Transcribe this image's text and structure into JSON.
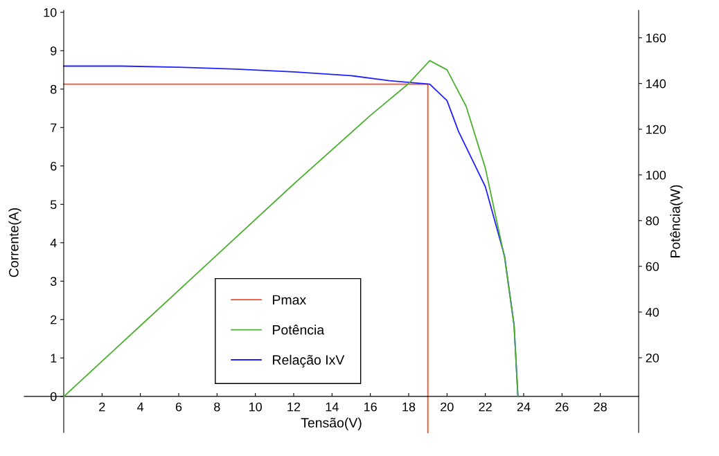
{
  "chart_data": {
    "type": "line",
    "xlabel": "Tensão(V)",
    "ylabel": "Corrente(A)",
    "y2label": "Potência(W)",
    "xlim": [
      -2.06,
      30
    ],
    "xticks": [
      2,
      4,
      6,
      8,
      10,
      12,
      14,
      16,
      18,
      20,
      22,
      24,
      26,
      28
    ],
    "ylim": [
      -0.94,
      10.05
    ],
    "yticks": [
      0,
      1,
      2,
      3,
      4,
      5,
      6,
      7,
      8,
      9,
      10
    ],
    "y2lim": [
      -12.7,
      172
    ],
    "y2ticks": [
      20,
      40,
      60,
      80,
      100,
      120,
      140,
      160
    ],
    "grid": false,
    "legend": "bottom left",
    "marker": "none",
    "line_style": "solid",
    "series": [
      {
        "name": "Pmax",
        "color": "#ff4a2a",
        "x": [
          0,
          19,
          19
        ],
        "values": [
          8.13,
          8.13,
          -0.94
        ]
      },
      {
        "name": "Potência",
        "color": "#4cb030",
        "axis": "y2",
        "x": [
          0,
          4,
          8,
          12,
          16,
          18,
          19.1,
          20,
          21,
          22,
          23,
          23.5,
          23.7
        ],
        "values": [
          3,
          34,
          65,
          96,
          126,
          140,
          150,
          146,
          130,
          103,
          64,
          34,
          3
        ]
      },
      {
        "name": "Relação IxV",
        "color": "#2020ff",
        "x": [
          0,
          3,
          6,
          9,
          12,
          15,
          17,
          19.1,
          20,
          20.6,
          22,
          23,
          23.5,
          23.7
        ],
        "values": [
          8.6,
          8.6,
          8.57,
          8.52,
          8.45,
          8.35,
          8.22,
          8.13,
          7.7,
          6.9,
          5.46,
          3.66,
          1.86,
          0
        ]
      }
    ]
  }
}
